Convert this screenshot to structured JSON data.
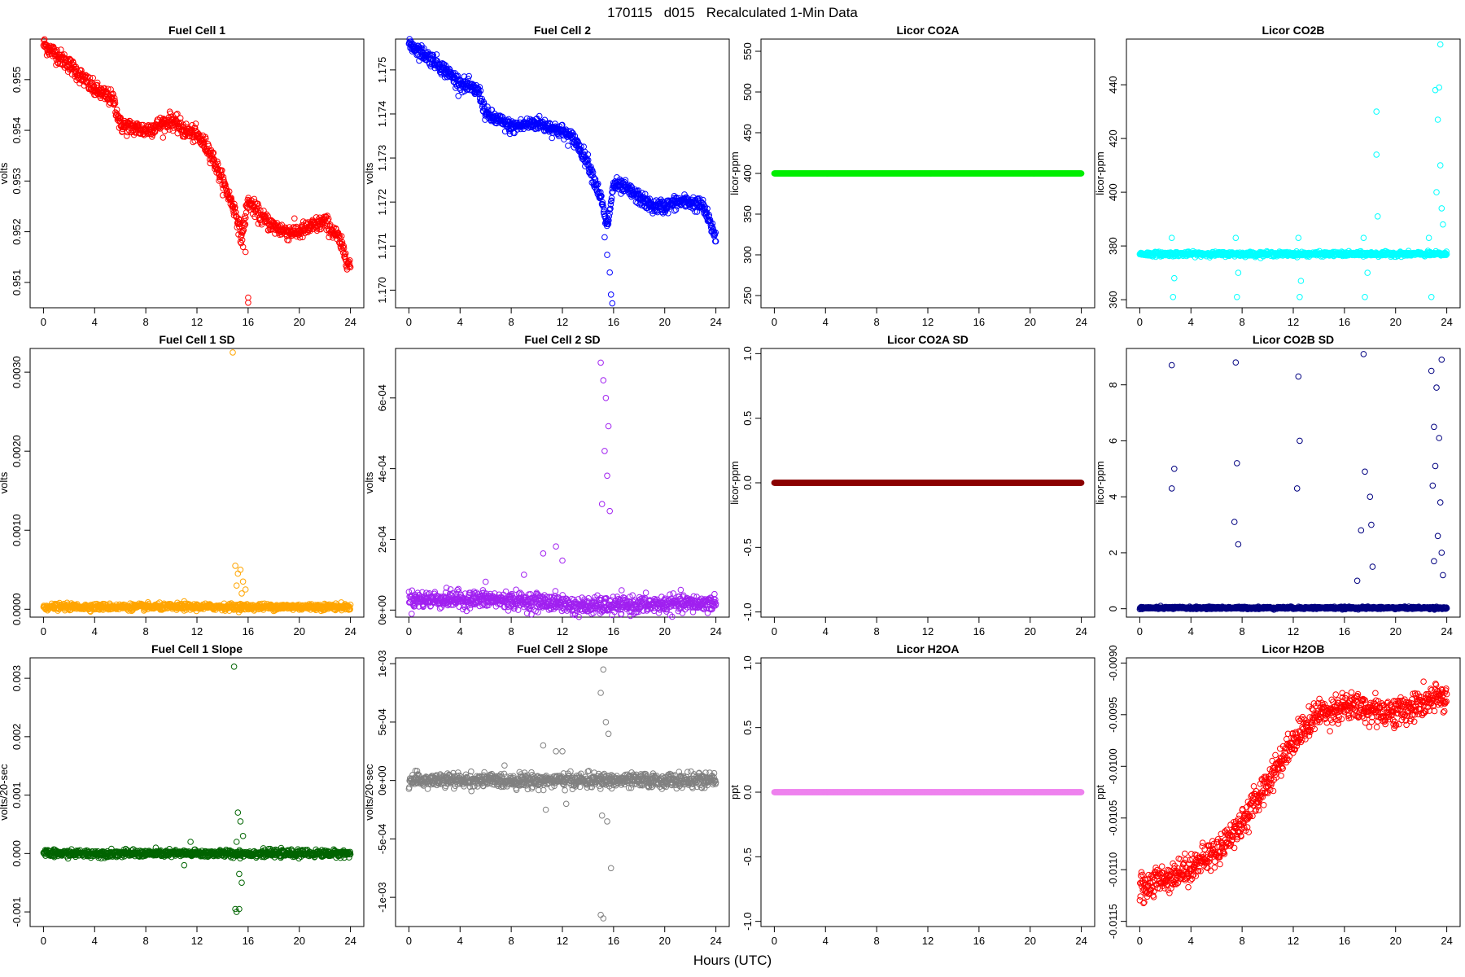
{
  "figure": {
    "title": "170115   d015   Recalculated 1-Min Data",
    "xlabel": "Hours (UTC)"
  },
  "chart_data": [
    {
      "type": "scatter",
      "title": "Fuel Cell 1",
      "ylabel": "volts",
      "color": "#ff0000",
      "xlim": [
        0,
        24
      ],
      "xticks": [
        "0",
        "4",
        "8",
        "12",
        "16",
        "20",
        "24"
      ],
      "ylim": [
        0.9505,
        0.9558
      ],
      "yticks": [
        0.951,
        0.952,
        0.953,
        0.954,
        0.955
      ],
      "ytick_labels": [
        "0.951",
        "0.952",
        "0.953",
        "0.954",
        "0.955"
      ],
      "trend": {
        "x": [
          0,
          2,
          4,
          5.5,
          6,
          8,
          10,
          11,
          12,
          13,
          14,
          15,
          15.5,
          16,
          17,
          18,
          19,
          20,
          21,
          22,
          23,
          24
        ],
        "y": [
          0.9557,
          0.9553,
          0.9548,
          0.9546,
          0.9541,
          0.954,
          0.9542,
          0.954,
          0.9539,
          0.9536,
          0.953,
          0.9524,
          0.9519,
          0.9526,
          0.9523,
          0.9521,
          0.952,
          0.952,
          0.9521,
          0.9522,
          0.9519,
          0.9513
        ]
      },
      "noise": 8e-05,
      "points": 900,
      "outliers": [
        {
          "x": 15.2,
          "y": 0.9522
        },
        {
          "x": 15.4,
          "y": 0.9518
        },
        {
          "x": 15.6,
          "y": 0.9517
        },
        {
          "x": 15.8,
          "y": 0.9516
        },
        {
          "x": 16.0,
          "y": 0.9507
        },
        {
          "x": 16.0,
          "y": 0.9506
        }
      ]
    },
    {
      "type": "scatter",
      "title": "Fuel Cell 2",
      "ylabel": "volts",
      "color": "#0000ff",
      "xlim": [
        0,
        24
      ],
      "xticks": [
        "0",
        "4",
        "8",
        "12",
        "16",
        "20",
        "24"
      ],
      "ylim": [
        1.1696,
        1.1757
      ],
      "yticks": [
        1.17,
        1.171,
        1.172,
        1.173,
        1.174,
        1.175
      ],
      "ytick_labels": [
        "1.170",
        "1.171",
        "1.172",
        "1.173",
        "1.174",
        "1.175"
      ],
      "trend": {
        "x": [
          0,
          2,
          4,
          5.5,
          6,
          8,
          10,
          11,
          12,
          13,
          14,
          15,
          15.5,
          16,
          17,
          18,
          19,
          20,
          21,
          22,
          23,
          24
        ],
        "y": [
          1.1756,
          1.1752,
          1.1747,
          1.1745,
          1.174,
          1.1737,
          1.1738,
          1.1737,
          1.1736,
          1.1734,
          1.1729,
          1.1721,
          1.1714,
          1.1724,
          1.1723,
          1.1721,
          1.1719,
          1.1719,
          1.172,
          1.172,
          1.1719,
          1.1712
        ]
      },
      "noise": 8e-05,
      "points": 900,
      "outliers": [
        {
          "x": 15.3,
          "y": 1.1712
        },
        {
          "x": 15.5,
          "y": 1.1708
        },
        {
          "x": 15.7,
          "y": 1.1704
        },
        {
          "x": 15.8,
          "y": 1.1699
        },
        {
          "x": 15.9,
          "y": 1.1697
        }
      ]
    },
    {
      "type": "scatter",
      "title": "Licor CO2A",
      "ylabel": "licor-ppm",
      "color": "#00ee00",
      "xlim": [
        0,
        24
      ],
      "xticks": [
        "0",
        "4",
        "8",
        "12",
        "16",
        "20",
        "24"
      ],
      "ylim": [
        235,
        565
      ],
      "yticks": [
        250,
        300,
        350,
        400,
        450,
        500,
        550
      ],
      "ytick_labels": [
        "250",
        "300",
        "350",
        "400",
        "450",
        "500",
        "550"
      ],
      "trend": {
        "x": [
          0,
          24
        ],
        "y": [
          400,
          400
        ]
      },
      "noise": 0,
      "points": 900,
      "outliers": []
    },
    {
      "type": "scatter",
      "title": "Licor CO2B",
      "ylabel": "licor-ppm",
      "color": "#00ffff",
      "xlim": [
        0,
        24
      ],
      "xticks": [
        "0",
        "4",
        "8",
        "12",
        "16",
        "20",
        "24"
      ],
      "ylim": [
        357,
        457
      ],
      "yticks": [
        360,
        380,
        400,
        420,
        440
      ],
      "ytick_labels": [
        "360",
        "380",
        "400",
        "420",
        "440"
      ],
      "trend": {
        "x": [
          0,
          24
        ],
        "y": [
          377,
          377
        ]
      },
      "noise": 0.4,
      "points": 900,
      "outliers": [
        {
          "x": 2.5,
          "y": 383
        },
        {
          "x": 2.6,
          "y": 361
        },
        {
          "x": 2.7,
          "y": 368
        },
        {
          "x": 7.5,
          "y": 383
        },
        {
          "x": 7.6,
          "y": 361
        },
        {
          "x": 7.7,
          "y": 370
        },
        {
          "x": 12.4,
          "y": 383
        },
        {
          "x": 12.5,
          "y": 361
        },
        {
          "x": 12.6,
          "y": 367
        },
        {
          "x": 17.5,
          "y": 383
        },
        {
          "x": 17.6,
          "y": 361
        },
        {
          "x": 17.8,
          "y": 370
        },
        {
          "x": 18.5,
          "y": 430
        },
        {
          "x": 18.5,
          "y": 414
        },
        {
          "x": 18.6,
          "y": 391
        },
        {
          "x": 22.6,
          "y": 383
        },
        {
          "x": 22.8,
          "y": 361
        },
        {
          "x": 23.1,
          "y": 438
        },
        {
          "x": 23.3,
          "y": 427
        },
        {
          "x": 23.4,
          "y": 439
        },
        {
          "x": 23.5,
          "y": 455
        },
        {
          "x": 23.5,
          "y": 410
        },
        {
          "x": 23.2,
          "y": 400
        },
        {
          "x": 23.6,
          "y": 394
        },
        {
          "x": 23.7,
          "y": 388
        }
      ]
    },
    {
      "type": "scatter",
      "title": "Fuel Cell 1 SD",
      "ylabel": "volts",
      "color": "#ffa500",
      "xlim": [
        0,
        24
      ],
      "xticks": [
        "0",
        "4",
        "8",
        "12",
        "16",
        "20",
        "24"
      ],
      "ylim": [
        -0.0001,
        0.0033
      ],
      "yticks": [
        0,
        0.001,
        0.002,
        0.003
      ],
      "ytick_labels": [
        "0.0000",
        "0.0010",
        "0.0020",
        "0.0030"
      ],
      "trend": {
        "x": [
          0,
          24
        ],
        "y": [
          3e-05,
          3e-05
        ]
      },
      "noise": 2e-05,
      "points": 900,
      "outliers": [
        {
          "x": 14.8,
          "y": 0.00325
        },
        {
          "x": 15.0,
          "y": 0.00055
        },
        {
          "x": 15.2,
          "y": 0.00045
        },
        {
          "x": 15.4,
          "y": 0.0005
        },
        {
          "x": 15.6,
          "y": 0.00035
        },
        {
          "x": 15.8,
          "y": 0.00025
        },
        {
          "x": 15.1,
          "y": 0.0003
        },
        {
          "x": 15.5,
          "y": 0.0002
        },
        {
          "x": 11,
          "y": 0.0001
        }
      ]
    },
    {
      "type": "scatter",
      "title": "Fuel Cell 2 SD",
      "ylabel": "volts",
      "color": "#a020f0",
      "xlim": [
        0,
        24
      ],
      "xticks": [
        "0",
        "4",
        "8",
        "12",
        "16",
        "20",
        "24"
      ],
      "ylim": [
        -2e-05,
        0.00074
      ],
      "yticks": [
        0,
        0.0002,
        0.0004,
        0.0006
      ],
      "ytick_labels": [
        "0e+00",
        "2e-04",
        "4e-04",
        "6e-04"
      ],
      "trend": {
        "x": [
          0,
          6,
          12,
          13,
          24
        ],
        "y": [
          3e-05,
          3e-05,
          2e-05,
          1e-05,
          2e-05
        ]
      },
      "noise": 1.2e-05,
      "points": 900,
      "outliers": [
        {
          "x": 15.0,
          "y": 0.0007
        },
        {
          "x": 15.2,
          "y": 0.00065
        },
        {
          "x": 15.4,
          "y": 0.0006
        },
        {
          "x": 15.6,
          "y": 0.00052
        },
        {
          "x": 15.3,
          "y": 0.00045
        },
        {
          "x": 15.5,
          "y": 0.00038
        },
        {
          "x": 15.1,
          "y": 0.0003
        },
        {
          "x": 15.7,
          "y": 0.00028
        },
        {
          "x": 11.5,
          "y": 0.00018
        },
        {
          "x": 10.5,
          "y": 0.00016
        },
        {
          "x": 12,
          "y": 0.00014
        },
        {
          "x": 9,
          "y": 0.0001
        },
        {
          "x": 6,
          "y": 8e-05
        }
      ]
    },
    {
      "type": "scatter",
      "title": "Licor CO2A SD",
      "ylabel": "licor-ppm",
      "color": "#8b0000",
      "xlim": [
        0,
        24
      ],
      "xticks": [
        "0",
        "4",
        "8",
        "12",
        "16",
        "20",
        "24"
      ],
      "ylim": [
        -1.04,
        1.04
      ],
      "yticks": [
        -1,
        -0.5,
        0,
        0.5,
        1
      ],
      "ytick_labels": [
        "-1.0",
        "-0.5",
        "0.0",
        "0.5",
        "1.0"
      ],
      "trend": {
        "x": [
          0,
          24
        ],
        "y": [
          0,
          0
        ]
      },
      "noise": 0,
      "points": 900,
      "outliers": []
    },
    {
      "type": "scatter",
      "title": "Licor CO2B SD",
      "ylabel": "licor-ppm",
      "color": "#000080",
      "xlim": [
        0,
        24
      ],
      "xticks": [
        "0",
        "4",
        "8",
        "12",
        "16",
        "20",
        "24"
      ],
      "ylim": [
        -0.3,
        9.3
      ],
      "yticks": [
        0,
        2,
        4,
        6,
        8
      ],
      "ytick_labels": [
        "0",
        "2",
        "4",
        "6",
        "8"
      ],
      "trend": {
        "x": [
          0,
          24
        ],
        "y": [
          0.03,
          0.03
        ]
      },
      "noise": 0.02,
      "points": 900,
      "outliers": [
        {
          "x": 2.5,
          "y": 8.7
        },
        {
          "x": 2.5,
          "y": 4.3
        },
        {
          "x": 2.7,
          "y": 5.0
        },
        {
          "x": 7.5,
          "y": 8.8
        },
        {
          "x": 7.6,
          "y": 5.2
        },
        {
          "x": 7.4,
          "y": 3.1
        },
        {
          "x": 7.7,
          "y": 2.3
        },
        {
          "x": 12.4,
          "y": 8.3
        },
        {
          "x": 12.5,
          "y": 6.0
        },
        {
          "x": 12.3,
          "y": 4.3
        },
        {
          "x": 17.5,
          "y": 9.1
        },
        {
          "x": 17.6,
          "y": 4.9
        },
        {
          "x": 18.0,
          "y": 4.0
        },
        {
          "x": 18.1,
          "y": 3.0
        },
        {
          "x": 17.3,
          "y": 2.8
        },
        {
          "x": 18.2,
          "y": 1.5
        },
        {
          "x": 17.0,
          "y": 1.0
        },
        {
          "x": 22.8,
          "y": 8.5
        },
        {
          "x": 23.2,
          "y": 7.9
        },
        {
          "x": 23.6,
          "y": 8.9
        },
        {
          "x": 23.0,
          "y": 6.5
        },
        {
          "x": 23.4,
          "y": 6.1
        },
        {
          "x": 23.1,
          "y": 5.1
        },
        {
          "x": 23.5,
          "y": 3.8
        },
        {
          "x": 22.9,
          "y": 4.4
        },
        {
          "x": 23.3,
          "y": 2.6
        },
        {
          "x": 23.6,
          "y": 2.0
        },
        {
          "x": 23.0,
          "y": 1.7
        },
        {
          "x": 23.7,
          "y": 1.2
        }
      ]
    },
    {
      "type": "scatter",
      "title": "Fuel Cell 1 Slope",
      "ylabel": "volts/20-sec",
      "color": "#006400",
      "xlim": [
        0,
        24
      ],
      "xticks": [
        "0",
        "4",
        "8",
        "12",
        "16",
        "20",
        "24"
      ],
      "ylim": [
        -0.00125,
        0.00335
      ],
      "yticks": [
        -0.001,
        0,
        0.001,
        0.002,
        0.003
      ],
      "ytick_labels": [
        "-0.001",
        "0.000",
        "0.001",
        "0.002",
        "0.003"
      ],
      "trend": {
        "x": [
          0,
          24
        ],
        "y": [
          0,
          0
        ]
      },
      "noise": 3e-05,
      "points": 900,
      "outliers": [
        {
          "x": 14.9,
          "y": 0.0032
        },
        {
          "x": 15.2,
          "y": 0.0007
        },
        {
          "x": 15.4,
          "y": 0.00055
        },
        {
          "x": 15.6,
          "y": 0.0003
        },
        {
          "x": 15.1,
          "y": 0.0002
        },
        {
          "x": 15.3,
          "y": -0.00035
        },
        {
          "x": 15.5,
          "y": -0.0005
        },
        {
          "x": 15.0,
          "y": -0.00095
        },
        {
          "x": 15.1,
          "y": -0.001
        },
        {
          "x": 15.3,
          "y": -0.00095
        },
        {
          "x": 11,
          "y": -0.0002
        },
        {
          "x": 11.5,
          "y": 0.0002
        }
      ]
    },
    {
      "type": "scatter",
      "title": "Fuel Cell 2 Slope",
      "ylabel": "volts/20-sec",
      "color": "#808080",
      "xlim": [
        0,
        24
      ],
      "xticks": [
        "0",
        "4",
        "8",
        "12",
        "16",
        "20",
        "24"
      ],
      "ylim": [
        -0.00125,
        0.00105
      ],
      "yticks": [
        -0.001,
        -0.0005,
        0,
        0.0005,
        0.001
      ],
      "ytick_labels": [
        "-1e-03",
        "-5e-04",
        "0e+00",
        "5e-04",
        "1e-03"
      ],
      "trend": {
        "x": [
          0,
          24
        ],
        "y": [
          0,
          0
        ]
      },
      "noise": 3e-05,
      "points": 900,
      "outliers": [
        {
          "x": 15.2,
          "y": 0.00095
        },
        {
          "x": 15.0,
          "y": 0.00075
        },
        {
          "x": 15.4,
          "y": 0.0005
        },
        {
          "x": 15.6,
          "y": 0.0004
        },
        {
          "x": 12,
          "y": 0.00025
        },
        {
          "x": 10.5,
          "y": 0.0003
        },
        {
          "x": 11.5,
          "y": 0.00025
        },
        {
          "x": 15.1,
          "y": -0.0003
        },
        {
          "x": 15.5,
          "y": -0.00035
        },
        {
          "x": 15.8,
          "y": -0.00075
        },
        {
          "x": 15.0,
          "y": -0.00115
        },
        {
          "x": 15.2,
          "y": -0.00118
        },
        {
          "x": 10.7,
          "y": -0.00025
        },
        {
          "x": 12.3,
          "y": -0.0002
        }
      ]
    },
    {
      "type": "scatter",
      "title": "Licor H2OA",
      "ylabel": "ppt",
      "color": "#ee82ee",
      "xlim": [
        0,
        24
      ],
      "xticks": [
        "0",
        "4",
        "8",
        "12",
        "16",
        "20",
        "24"
      ],
      "ylim": [
        -1.04,
        1.04
      ],
      "yticks": [
        -1,
        -0.5,
        0,
        0.5,
        1
      ],
      "ytick_labels": [
        "-1.0",
        "-0.5",
        "0.0",
        "0.5",
        "1.0"
      ],
      "trend": {
        "x": [
          0,
          24
        ],
        "y": [
          0,
          0
        ]
      },
      "noise": 0,
      "points": 900,
      "outliers": []
    },
    {
      "type": "scatter",
      "title": "Licor H2OB",
      "ylabel": "ppt",
      "color": "#ff0000",
      "xlim": [
        0,
        24
      ],
      "xticks": [
        "0",
        "4",
        "8",
        "12",
        "16",
        "20",
        "24"
      ],
      "ylim": [
        -0.01155,
        -0.00895
      ],
      "yticks": [
        -0.0115,
        -0.011,
        -0.0105,
        -0.01,
        -0.0095,
        -0.009
      ],
      "ytick_labels": [
        "-0.0115",
        "-0.0110",
        "-0.0105",
        "-0.0100",
        "-0.0095",
        "-0.0090"
      ],
      "trend": {
        "x": [
          0,
          2,
          4,
          6,
          8,
          10,
          12,
          14,
          16,
          20,
          24
        ],
        "y": [
          -0.01118,
          -0.01108,
          -0.01098,
          -0.01082,
          -0.01055,
          -0.01015,
          -0.00975,
          -0.00948,
          -0.00942,
          -0.00948,
          -0.00932
        ]
      },
      "noise": 7e-05,
      "points": 900,
      "outliers": []
    }
  ]
}
